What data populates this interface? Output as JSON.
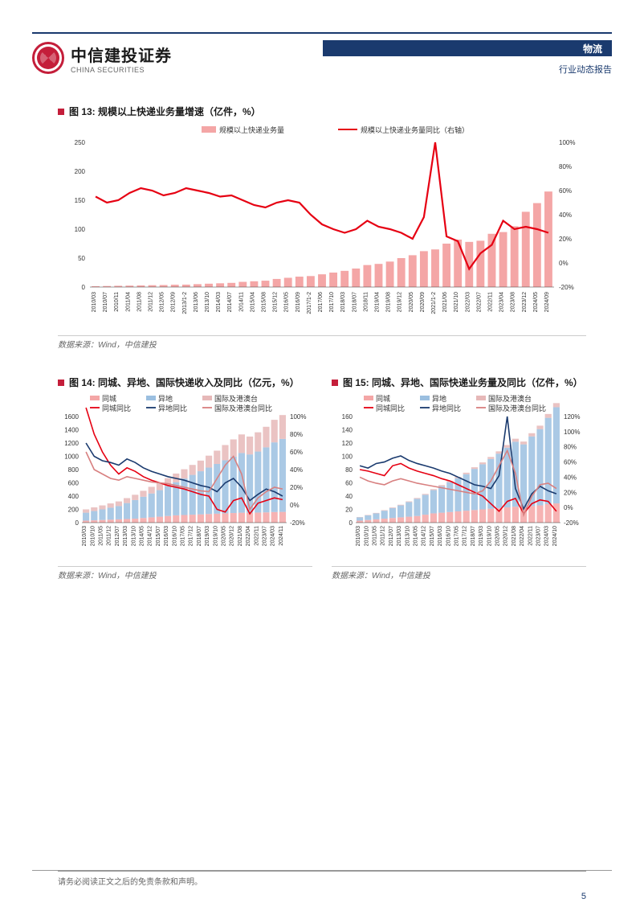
{
  "brand": {
    "name_cn": "中信建投证券",
    "name_en": "CHINA SECURITIES",
    "logo_color": "#c41e3a"
  },
  "header": {
    "category": "物流",
    "report_type": "行业动态报告",
    "bar_color": "#1a3a6e"
  },
  "chart13": {
    "title": "图 13: 规模以上快递业务量增速（亿件，%）",
    "type": "bar+line",
    "legend": {
      "bar": "规模以上快递业务量",
      "line": "规模以上快递业务量同比（右轴）"
    },
    "bar_color": "#f4a6a6",
    "line_color": "#e60012",
    "y_left": {
      "min": 0,
      "max": 250,
      "step": 50
    },
    "y_right": {
      "min": -20,
      "max": 100,
      "step": 20,
      "suffix": "%"
    },
    "x_labels": [
      "2010/03",
      "2010/07",
      "2010/11",
      "2011/04",
      "2011/08",
      "2011/12",
      "2012/05",
      "2012/09",
      "2013/1-2",
      "2013/06",
      "2013/10",
      "2014/03",
      "2014/07",
      "2014/11",
      "2015/04",
      "2015/08",
      "2015/12",
      "2016/05",
      "2016/09",
      "2017/1-2",
      "2017/06",
      "2017/10",
      "2018/03",
      "2018/07",
      "2018/11",
      "2019/04",
      "2019/08",
      "2019/12",
      "2020/05",
      "2020/09",
      "2021/1-2",
      "2021/06",
      "2021/10",
      "2022/03",
      "2022/07",
      "2022/11",
      "2023/04",
      "2023/08",
      "2023/12",
      "2024/05",
      "2024/09"
    ],
    "bar_values": [
      1.5,
      1.8,
      2.2,
      2.5,
      2.8,
      3.2,
      3.5,
      4.0,
      4.2,
      5.0,
      5.8,
      6.5,
      7.2,
      9.0,
      10,
      11,
      14,
      16,
      18,
      19,
      22,
      25,
      28,
      32,
      38,
      40,
      44,
      50,
      55,
      62,
      65,
      75,
      82,
      78,
      80,
      92,
      95,
      105,
      130,
      145,
      165
    ],
    "line_values": [
      55,
      50,
      52,
      58,
      62,
      60,
      56,
      58,
      62,
      60,
      58,
      55,
      56,
      52,
      48,
      46,
      50,
      52,
      50,
      40,
      32,
      28,
      25,
      28,
      35,
      30,
      28,
      25,
      20,
      38,
      100,
      22,
      18,
      -5,
      8,
      15,
      35,
      28,
      30,
      28,
      25
    ],
    "source": "数据来源：Wind，中信建投"
  },
  "chart14": {
    "title": "图 14: 同城、异地、国际快递收入及同比（亿元，%）",
    "type": "bar+line",
    "legend": {
      "b1": "同城",
      "b2": "异地",
      "b3": "国际及港澳台",
      "l1": "同城同比",
      "l2": "异地同比",
      "l3": "国际及港澳台同比"
    },
    "colors": {
      "b1": "#f4a6a6",
      "b2": "#9bbfe0",
      "b3": "#e6b8b8",
      "l1": "#e60012",
      "l2": "#1a3a6e",
      "l3": "#d88080"
    },
    "y_left": {
      "min": 0,
      "max": 1600,
      "step": 200
    },
    "y_right": {
      "min": -20,
      "max": 100,
      "step": 20,
      "suffix": "%"
    },
    "x_labels": [
      "2010/03",
      "2010/10",
      "2011/05",
      "2011/12",
      "2012/07",
      "2013/03",
      "2013/10",
      "2014/05",
      "2014/12",
      "2015/07",
      "2016/03",
      "2016/10",
      "2017/05",
      "2017/12",
      "2018/07",
      "2019/03",
      "2019/10",
      "2020/05",
      "2020/12",
      "2021/08",
      "2022/04",
      "2022/11",
      "2023/07",
      "2024/03",
      "2024/11"
    ],
    "b_stack": [
      [
        30,
        35,
        40,
        45,
        50,
        55,
        60,
        70,
        80,
        90,
        100,
        110,
        115,
        120,
        125,
        130,
        135,
        140,
        145,
        150,
        148,
        152,
        155,
        160,
        162
      ],
      [
        120,
        140,
        160,
        180,
        200,
        240,
        280,
        320,
        360,
        400,
        450,
        500,
        550,
        600,
        650,
        700,
        750,
        800,
        850,
        900,
        880,
        920,
        980,
        1050,
        1100
      ],
      [
        50,
        55,
        60,
        65,
        70,
        75,
        80,
        90,
        100,
        110,
        120,
        130,
        140,
        150,
        160,
        180,
        200,
        230,
        260,
        280,
        270,
        290,
        310,
        340,
        360
      ]
    ],
    "l1_values": [
      110,
      80,
      60,
      45,
      35,
      42,
      38,
      32,
      28,
      25,
      22,
      20,
      18,
      15,
      12,
      10,
      -5,
      -8,
      5,
      8,
      -10,
      2,
      5,
      8,
      6
    ],
    "l2_values": [
      70,
      55,
      50,
      48,
      45,
      52,
      48,
      42,
      38,
      35,
      32,
      30,
      28,
      25,
      22,
      20,
      15,
      25,
      30,
      20,
      5,
      12,
      18,
      15,
      10
    ],
    "l3_values": [
      60,
      40,
      35,
      30,
      28,
      32,
      30,
      28,
      26,
      25,
      24,
      22,
      20,
      18,
      16,
      15,
      30,
      45,
      55,
      35,
      -5,
      8,
      15,
      20,
      18
    ],
    "source": "数据来源：Wind，中信建投"
  },
  "chart15": {
    "title": "图 15: 同城、异地、国际快递业务量及同比（亿件，%）",
    "type": "bar+line",
    "legend": {
      "b1": "同城",
      "b2": "异地",
      "b3": "国际及港澳台",
      "l1": "同城同比",
      "l2": "异地同比",
      "l3": "国际及港澳台同比"
    },
    "colors": {
      "b1": "#f4a6a6",
      "b2": "#9bbfe0",
      "b3": "#e6b8b8",
      "l1": "#e60012",
      "l2": "#1a3a6e",
      "l3": "#d88080"
    },
    "y_left": {
      "min": 0,
      "max": 160,
      "step": 20
    },
    "y_right": {
      "min": -20,
      "max": 120,
      "step": 20,
      "suffix": "%"
    },
    "x_labels": [
      "2010/03",
      "2010/10",
      "2011/05",
      "2011/12",
      "2012/07",
      "2013/03",
      "2013/10",
      "2014/05",
      "2014/12",
      "2015/07",
      "2016/03",
      "2016/10",
      "2017/05",
      "2017/12",
      "2018/07",
      "2019/03",
      "2019/10",
      "2020/05",
      "2020/12",
      "2021/08",
      "2022/04",
      "2022/11",
      "2023/07",
      "2024/03",
      "2024/10"
    ],
    "b_stack": [
      [
        3,
        4,
        5,
        6,
        7,
        8,
        9,
        10,
        12,
        14,
        15,
        16,
        17,
        18,
        19,
        20,
        21,
        22,
        23,
        24,
        23,
        25,
        26,
        28,
        29
      ],
      [
        5,
        7,
        9,
        12,
        15,
        18,
        22,
        26,
        30,
        35,
        40,
        45,
        50,
        55,
        62,
        68,
        75,
        82,
        90,
        98,
        95,
        105,
        115,
        130,
        145
      ],
      [
        0.5,
        0.6,
        0.7,
        0.8,
        0.9,
        1.0,
        1.1,
        1.2,
        1.3,
        1.5,
        1.7,
        1.9,
        2.1,
        2.3,
        2.5,
        2.8,
        3.0,
        3.5,
        4.0,
        4.5,
        4.2,
        4.8,
        5.2,
        5.8,
        6.2
      ]
    ],
    "l1_values": [
      50,
      48,
      45,
      42,
      55,
      58,
      52,
      48,
      45,
      42,
      38,
      35,
      30,
      25,
      20,
      15,
      5,
      -5,
      8,
      12,
      -8,
      5,
      10,
      8,
      -5
    ],
    "l2_values": [
      55,
      52,
      58,
      60,
      65,
      68,
      62,
      58,
      55,
      52,
      48,
      45,
      40,
      35,
      30,
      28,
      25,
      42,
      120,
      25,
      -2,
      18,
      28,
      22,
      18
    ],
    "l3_values": [
      40,
      35,
      32,
      30,
      35,
      38,
      35,
      32,
      30,
      28,
      26,
      24,
      22,
      20,
      18,
      22,
      35,
      55,
      75,
      45,
      -10,
      15,
      30,
      32,
      25
    ],
    "source": "数据来源：Wind，中信建投"
  },
  "footer": {
    "text": "请务必阅读正文之后的免责条款和声明。",
    "page": "5"
  }
}
